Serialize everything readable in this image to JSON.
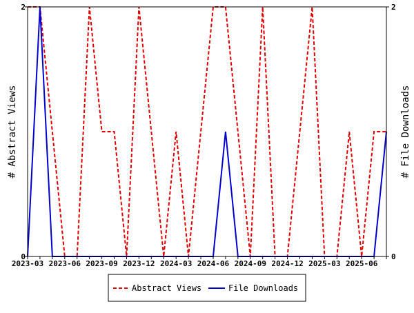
{
  "chart_data": {
    "type": "line",
    "x": [
      "2023-03",
      "2023-04",
      "2023-05",
      "2023-06",
      "2023-07",
      "2023-08",
      "2023-09",
      "2023-10",
      "2023-11",
      "2023-12",
      "2024-01",
      "2024-02",
      "2024-03",
      "2024-04",
      "2024-05",
      "2024-06",
      "2024-07",
      "2024-08",
      "2024-09",
      "2024-10",
      "2024-11",
      "2024-12",
      "2025-01",
      "2025-02",
      "2025-03",
      "2025-04",
      "2025-05",
      "2025-06",
      "2025-07",
      "2025-08"
    ],
    "xticks": [
      "2023-03",
      "2023-06",
      "2023-09",
      "2023-12",
      "2024-03",
      "2024-06",
      "2024-09",
      "2024-12",
      "2025-03",
      "2025-06"
    ],
    "series": [
      {
        "name": "Abstract Views",
        "axis": "left",
        "color": "#dd0000",
        "style": "dashed",
        "values": [
          2,
          2,
          1,
          0,
          0,
          2,
          1,
          1,
          0,
          2,
          1,
          0,
          1,
          0,
          1,
          2,
          2,
          1,
          0,
          2,
          0,
          0,
          1,
          2,
          0,
          0,
          1,
          0,
          1,
          1
        ]
      },
      {
        "name": "File Downloads",
        "axis": "right",
        "color": "#0000cc",
        "style": "solid",
        "values": [
          0,
          2,
          0,
          0,
          0,
          0,
          0,
          0,
          0,
          0,
          0,
          0,
          0,
          0,
          0,
          0,
          1,
          0,
          0,
          0,
          0,
          0,
          0,
          0,
          0,
          0,
          0,
          0,
          0,
          1
        ]
      }
    ],
    "ylabel": "# Abstract Views",
    "y2label": "# File Downloads",
    "ylim": [
      0,
      2
    ],
    "y2lim": [
      0,
      2
    ],
    "yticks": [
      "0",
      "2"
    ],
    "y2ticks": [
      "0",
      "2"
    ],
    "legend": "bottom-center",
    "grid": false
  }
}
